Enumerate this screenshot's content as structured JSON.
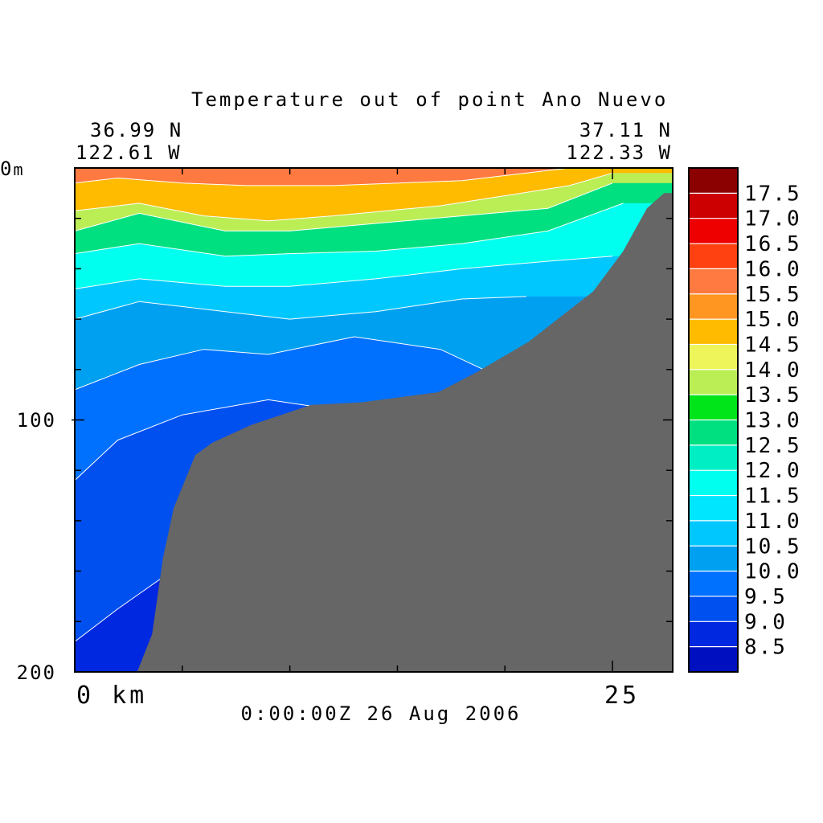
{
  "chart_data": {
    "type": "heatmap",
    "title": "Temperature out of point Ano Nuevo",
    "start_location": {
      "lat": "36.99 N",
      "lon": "122.61 W"
    },
    "end_location": {
      "lat": "37.11 N",
      "lon": "122.33 W"
    },
    "timestamp": "0:00:00Z  26 Aug 2006",
    "x_axis": {
      "unit_label": "km",
      "tick_labels": [
        "0",
        "25"
      ],
      "range_km": [
        0,
        27.8
      ]
    },
    "y_axis": {
      "unit_label": "m",
      "tick_labels": [
        "0",
        "100",
        "200"
      ],
      "range_m": [
        0,
        200
      ],
      "inverted": true
    },
    "colorbar": {
      "levels": [
        "17.5",
        "17.0",
        "16.5",
        "16.0",
        "15.5",
        "15.0",
        "14.5",
        "14.0",
        "13.5",
        "13.0",
        "12.5",
        "12.0",
        "11.5",
        "11.0",
        "10.5",
        "10.0",
        "9.5",
        "9.0",
        "8.5"
      ],
      "colors": [
        "#8b0000",
        "#cc0000",
        "#ee0000",
        "#ff4010",
        "#ff7a40",
        "#ff9622",
        "#ffbb00",
        "#eef55a",
        "#bbee55",
        "#00e41a",
        "#00e080",
        "#00eec4",
        "#00ffee",
        "#00e6ff",
        "#00c8ff",
        "#00a0f0",
        "#0070ff",
        "#0050f0",
        "#0028e0",
        "#0010c0"
      ]
    },
    "bathymetry_color": "#666666",
    "bathymetry_depth_m": [
      {
        "x_km": 2.9,
        "depth_m": 200
      },
      {
        "x_km": 3.6,
        "depth_m": 185
      },
      {
        "x_km": 4.1,
        "depth_m": 155
      },
      {
        "x_km": 4.6,
        "depth_m": 135
      },
      {
        "x_km": 5.6,
        "depth_m": 114
      },
      {
        "x_km": 6.4,
        "depth_m": 109
      },
      {
        "x_km": 8.2,
        "depth_m": 102
      },
      {
        "x_km": 11.0,
        "depth_m": 94
      },
      {
        "x_km": 13.3,
        "depth_m": 93
      },
      {
        "x_km": 16.9,
        "depth_m": 89
      },
      {
        "x_km": 18.7,
        "depth_m": 81
      },
      {
        "x_km": 21.1,
        "depth_m": 69
      },
      {
        "x_km": 24.1,
        "depth_m": 49
      },
      {
        "x_km": 25.5,
        "depth_m": 33
      },
      {
        "x_km": 26.6,
        "depth_m": 16
      },
      {
        "x_km": 27.4,
        "depth_m": 10
      },
      {
        "x_km": 27.8,
        "depth_m": 10
      }
    ],
    "isotherm_depth_profiles_m": [
      {
        "temp": 15.0,
        "x_km": [
          0,
          2,
          5,
          8,
          12,
          18,
          22,
          23
        ],
        "depth_m": [
          6,
          4,
          6,
          7,
          7,
          5,
          1,
          0
        ]
      },
      {
        "temp": 14.0,
        "x_km": [
          0,
          3,
          6,
          9,
          12,
          17,
          20,
          23,
          25
        ],
        "depth_m": [
          17,
          14,
          19,
          21,
          19,
          15,
          11,
          7,
          2
        ]
      },
      {
        "temp": 13.0,
        "x_km": [
          0,
          3,
          7,
          10,
          14,
          18,
          22,
          25
        ],
        "depth_m": [
          25,
          18,
          25,
          25,
          22,
          19,
          16,
          6
        ]
      },
      {
        "temp": 12.0,
        "x_km": [
          0,
          3,
          7,
          10,
          14,
          18,
          22,
          25.5
        ],
        "depth_m": [
          34,
          30,
          35,
          34,
          33,
          30,
          25,
          14
        ]
      },
      {
        "temp": 11.0,
        "x_km": [
          0,
          3,
          7,
          10,
          14,
          18,
          22,
          25
        ],
        "depth_m": [
          48,
          44,
          47,
          47,
          44,
          40,
          37,
          35
        ]
      },
      {
        "temp": 10.5,
        "x_km": [
          0,
          3,
          7,
          10,
          14,
          18,
          21
        ],
        "depth_m": [
          60,
          53,
          57,
          60,
          57,
          52,
          51
        ]
      },
      {
        "temp": 10.0,
        "x_km": [
          0,
          3,
          6,
          9,
          13,
          17,
          19.5
        ],
        "depth_m": [
          88,
          78,
          72,
          74,
          67,
          72,
          82
        ]
      },
      {
        "temp": 9.5,
        "x_km": [
          0,
          2,
          5,
          9,
          13,
          13.5
        ],
        "depth_m": [
          124,
          108,
          98,
          92,
          97,
          108
        ]
      },
      {
        "temp": 9.0,
        "x_km": [
          0,
          2,
          4,
          5.5
        ],
        "depth_m": [
          188,
          175,
          163,
          175
        ]
      }
    ]
  }
}
